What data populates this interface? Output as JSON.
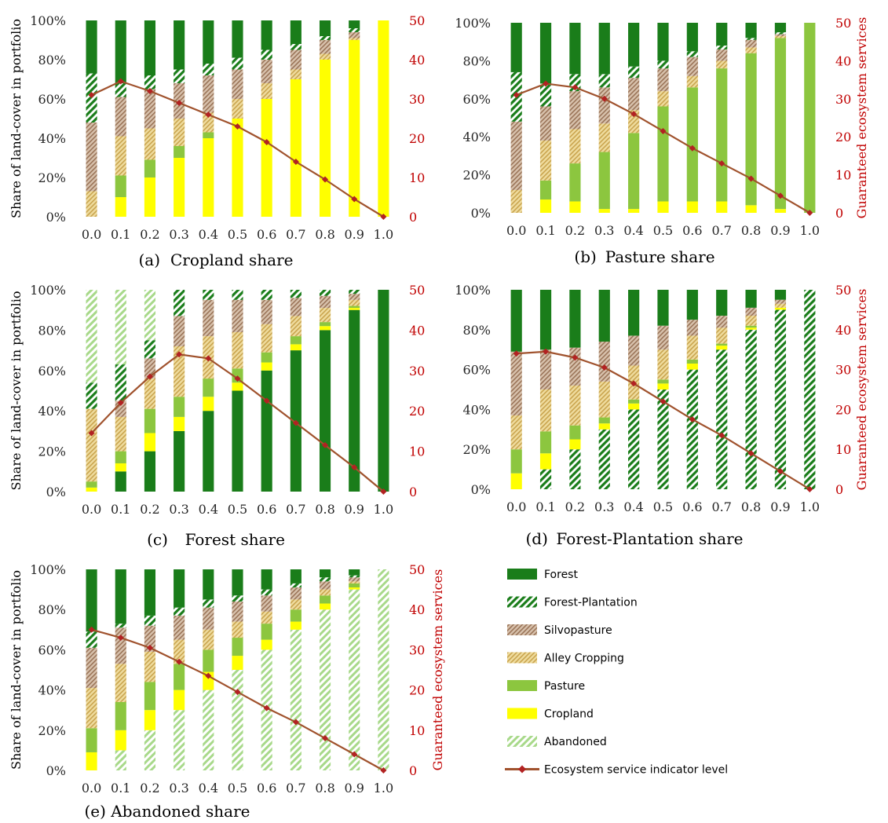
{
  "colors": {
    "Forest": "#1a7d1a",
    "Forest-Plantation": "#1a7d1a",
    "Silvopasture": "#a67c52",
    "Alley Cropping": "#d9b45a",
    "Pasture": "#8cc63f",
    "Cropland": "#ffff00",
    "Abandoned": "#a8d98a",
    "line": "#a0522d",
    "right_axis": "#c00000"
  },
  "legend": [
    {
      "name": "Forest",
      "pattern": "solid"
    },
    {
      "name": "Forest-Plantation",
      "pattern": "hatch"
    },
    {
      "name": "Silvopasture",
      "pattern": "texture"
    },
    {
      "name": "Alley Cropping",
      "pattern": "texture"
    },
    {
      "name": "Pasture",
      "pattern": "solid"
    },
    {
      "name": "Cropland",
      "pattern": "solid"
    },
    {
      "name": "Abandoned",
      "pattern": "hatch"
    },
    {
      "name": "Ecosystem service indicator level",
      "pattern": "line"
    }
  ],
  "chart_data": [
    {
      "type": "bar",
      "stacked": true,
      "caption": "(a) Cropland share",
      "ylabel": "Share of land-cover in portfolio",
      "y2label": "",
      "ylim": [
        0,
        100
      ],
      "y2lim": [
        0,
        50
      ],
      "yticks": [
        "0%",
        "20%",
        "40%",
        "60%",
        "80%",
        "100%"
      ],
      "y2ticks": [
        "0",
        "10",
        "20",
        "30",
        "40",
        "50"
      ],
      "categories": [
        "0.0",
        "0.1",
        "0.2",
        "0.3",
        "0.4",
        "0.5",
        "0.6",
        "0.7",
        "0.8",
        "0.9",
        "1.0"
      ],
      "series": [
        {
          "name": "Cropland",
          "values": [
            0,
            10,
            20,
            30,
            40,
            50,
            60,
            70,
            80,
            90,
            100
          ]
        },
        {
          "name": "Pasture",
          "values": [
            0,
            11,
            9,
            6,
            3,
            0,
            0,
            0,
            0,
            0,
            0
          ]
        },
        {
          "name": "Alley Cropping",
          "values": [
            13,
            20,
            16,
            14,
            10,
            10,
            8,
            5,
            3,
            1,
            0
          ]
        },
        {
          "name": "Silvopasture",
          "values": [
            35,
            20,
            20,
            18,
            19,
            15,
            12,
            10,
            7,
            3,
            0
          ]
        },
        {
          "name": "Forest-Plantation",
          "values": [
            25,
            7,
            7,
            7,
            6,
            6,
            5,
            3,
            2,
            2,
            0
          ]
        },
        {
          "name": "Abandoned",
          "values": [
            0,
            0,
            0,
            0,
            0,
            0,
            0,
            0,
            0,
            0,
            0
          ]
        },
        {
          "name": "Forest",
          "values": [
            27,
            32,
            28,
            25,
            22,
            19,
            15,
            12,
            8,
            4,
            0
          ]
        }
      ],
      "line": {
        "name": "Ecosystem service indicator level",
        "values": [
          31,
          34.5,
          32,
          29,
          26,
          23,
          19,
          14,
          9.5,
          4.5,
          0
        ]
      }
    },
    {
      "type": "bar",
      "stacked": true,
      "caption": "(b) Pasture share",
      "ylabel": "",
      "y2label": "Guaranteed ecosystem services",
      "ylim": [
        0,
        100
      ],
      "y2lim": [
        0,
        50
      ],
      "yticks": [
        "0%",
        "20%",
        "40%",
        "60%",
        "80%",
        "100%"
      ],
      "y2ticks": [
        "0",
        "10",
        "20",
        "30",
        "40",
        "50"
      ],
      "categories": [
        "0.0",
        "0.1",
        "0.2",
        "0.3",
        "0.4",
        "0.5",
        "0.6",
        "0.7",
        "0.8",
        "0.9",
        "1.0"
      ],
      "series": [
        {
          "name": "Cropland",
          "values": [
            0,
            7,
            6,
            2,
            2,
            6,
            6,
            6,
            4,
            2,
            0
          ]
        },
        {
          "name": "Pasture",
          "values": [
            0,
            10,
            20,
            30,
            40,
            50,
            60,
            70,
            80,
            90,
            100
          ]
        },
        {
          "name": "Alley Cropping",
          "values": [
            12,
            21,
            18,
            15,
            12,
            8,
            6,
            4,
            3,
            1,
            0
          ]
        },
        {
          "name": "Silvopasture",
          "values": [
            36,
            18,
            20,
            19,
            17,
            12,
            10,
            6,
            4,
            1,
            0
          ]
        },
        {
          "name": "Forest-Plantation",
          "values": [
            26,
            12,
            9,
            7,
            6,
            4,
            3,
            2,
            1,
            1,
            0
          ]
        },
        {
          "name": "Abandoned",
          "values": [
            0,
            0,
            0,
            0,
            0,
            0,
            0,
            0,
            0,
            0,
            0
          ]
        },
        {
          "name": "Forest",
          "values": [
            26,
            32,
            27,
            27,
            23,
            20,
            15,
            12,
            8,
            5,
            0
          ]
        }
      ],
      "line": {
        "name": "Ecosystem service indicator level",
        "values": [
          31,
          34,
          33,
          30,
          26,
          21.5,
          17,
          13,
          9,
          4.5,
          0
        ]
      }
    },
    {
      "type": "bar",
      "stacked": true,
      "caption": "(c) Forest share",
      "ylabel": "Share of land-cover in portfolio",
      "y2label": "",
      "ylim": [
        0,
        100
      ],
      "y2lim": [
        0,
        50
      ],
      "yticks": [
        "0%",
        "20%",
        "40%",
        "60%",
        "80%",
        "100%"
      ],
      "y2ticks": [
        "0",
        "10",
        "20",
        "30",
        "40",
        "50"
      ],
      "categories": [
        "0.0",
        "0.1",
        "0.2",
        "0.3",
        "0.4",
        "0.5",
        "0.6",
        "0.7",
        "0.8",
        "0.9",
        "1.0"
      ],
      "series": [
        {
          "name": "Forest",
          "values": [
            0,
            10,
            20,
            30,
            40,
            50,
            60,
            70,
            80,
            90,
            100
          ]
        },
        {
          "name": "Cropland",
          "values": [
            2,
            4,
            9,
            7,
            7,
            4,
            4,
            3,
            2,
            1,
            0
          ]
        },
        {
          "name": "Pasture",
          "values": [
            3,
            6,
            12,
            10,
            9,
            7,
            5,
            4,
            2,
            1,
            0
          ]
        },
        {
          "name": "Alley Cropping",
          "values": [
            36,
            17,
            15,
            25,
            21,
            18,
            14,
            10,
            7,
            3,
            0
          ]
        },
        {
          "name": "Silvopasture",
          "values": [
            0,
            8,
            10,
            15,
            18,
            16,
            12,
            9,
            6,
            3,
            0
          ]
        },
        {
          "name": "Forest-Plantation",
          "values": [
            13,
            18,
            9,
            13,
            5,
            5,
            5,
            4,
            3,
            2,
            0
          ]
        },
        {
          "name": "Abandoned",
          "values": [
            46,
            37,
            25,
            0,
            0,
            0,
            0,
            0,
            0,
            0,
            0
          ]
        }
      ],
      "line": {
        "name": "Ecosystem service indicator level",
        "values": [
          14.5,
          22,
          28.5,
          34,
          33,
          28,
          22.5,
          17,
          11.5,
          6,
          0
        ]
      }
    },
    {
      "type": "bar",
      "stacked": true,
      "caption": "(d) Forest-Plantation share",
      "ylabel": "",
      "y2label": "Guaranteed ecosystem services",
      "ylim": [
        0,
        100
      ],
      "y2lim": [
        0,
        50
      ],
      "yticks": [
        "0%",
        "20%",
        "40%",
        "60%",
        "80%",
        "100%"
      ],
      "y2ticks": [
        "0",
        "10",
        "20",
        "30",
        "40",
        "50"
      ],
      "categories": [
        "0.0",
        "0.1",
        "0.2",
        "0.3",
        "0.4",
        "0.5",
        "0.6",
        "0.7",
        "0.8",
        "0.9",
        "1.0"
      ],
      "series": [
        {
          "name": "Forest-Plantation",
          "values": [
            0,
            10,
            20,
            30,
            40,
            50,
            60,
            70,
            80,
            90,
            100
          ]
        },
        {
          "name": "Cropland",
          "values": [
            8,
            8,
            5,
            3,
            3,
            3,
            3,
            2,
            1,
            1,
            0
          ]
        },
        {
          "name": "Pasture",
          "values": [
            12,
            11,
            7,
            3,
            2,
            2,
            2,
            1,
            1,
            0,
            0
          ]
        },
        {
          "name": "Alley Cropping",
          "values": [
            17,
            21,
            20,
            18,
            17,
            15,
            12,
            8,
            5,
            2,
            0
          ]
        },
        {
          "name": "Silvopasture",
          "values": [
            32,
            20,
            19,
            20,
            15,
            12,
            8,
            6,
            4,
            2,
            0
          ]
        },
        {
          "name": "Abandoned",
          "values": [
            0,
            0,
            0,
            0,
            0,
            0,
            0,
            0,
            0,
            0,
            0
          ]
        },
        {
          "name": "Forest",
          "values": [
            31,
            30,
            29,
            26,
            23,
            18,
            15,
            13,
            9,
            5,
            0
          ]
        }
      ],
      "line": {
        "name": "Ecosystem service indicator level",
        "values": [
          34,
          34.5,
          33,
          30.5,
          26.5,
          22,
          17.5,
          13.5,
          9,
          4.5,
          0
        ]
      }
    },
    {
      "type": "bar",
      "stacked": true,
      "caption": "(e) Abandoned share",
      "ylabel": "Share of land-cover in portfolio",
      "y2label": "Guaranteed ecosystem services",
      "ylim": [
        0,
        100
      ],
      "y2lim": [
        0,
        50
      ],
      "yticks": [
        "0%",
        "20%",
        "40%",
        "60%",
        "80%",
        "100%"
      ],
      "y2ticks": [
        "0",
        "10",
        "20",
        "30",
        "40",
        "50"
      ],
      "categories": [
        "0.0",
        "0.1",
        "0.2",
        "0.3",
        "0.4",
        "0.5",
        "0.6",
        "0.7",
        "0.8",
        "0.9",
        "1.0"
      ],
      "series": [
        {
          "name": "Abandoned",
          "values": [
            0,
            10,
            20,
            30,
            40,
            50,
            60,
            70,
            80,
            90,
            100
          ]
        },
        {
          "name": "Cropland",
          "values": [
            9,
            10,
            10,
            10,
            9,
            7,
            5,
            4,
            3,
            1,
            0
          ]
        },
        {
          "name": "Pasture",
          "values": [
            12,
            14,
            14,
            13,
            11,
            9,
            8,
            6,
            4,
            2,
            0
          ]
        },
        {
          "name": "Alley Cropping",
          "values": [
            20,
            19,
            15,
            12,
            10,
            8,
            6,
            5,
            3,
            1,
            0
          ]
        },
        {
          "name": "Silvopasture",
          "values": [
            20,
            18,
            13,
            12,
            11,
            10,
            8,
            6,
            4,
            2,
            0
          ]
        },
        {
          "name": "Forest-Plantation",
          "values": [
            8,
            2,
            5,
            4,
            4,
            3,
            3,
            2,
            2,
            1,
            0
          ]
        },
        {
          "name": "Forest",
          "values": [
            31,
            27,
            23,
            19,
            15,
            13,
            10,
            7,
            4,
            3,
            0
          ]
        }
      ],
      "line": {
        "name": "Ecosystem service indicator level",
        "values": [
          35,
          33,
          30.5,
          27,
          23.5,
          19.5,
          15.5,
          12,
          8,
          4,
          0
        ]
      }
    }
  ]
}
